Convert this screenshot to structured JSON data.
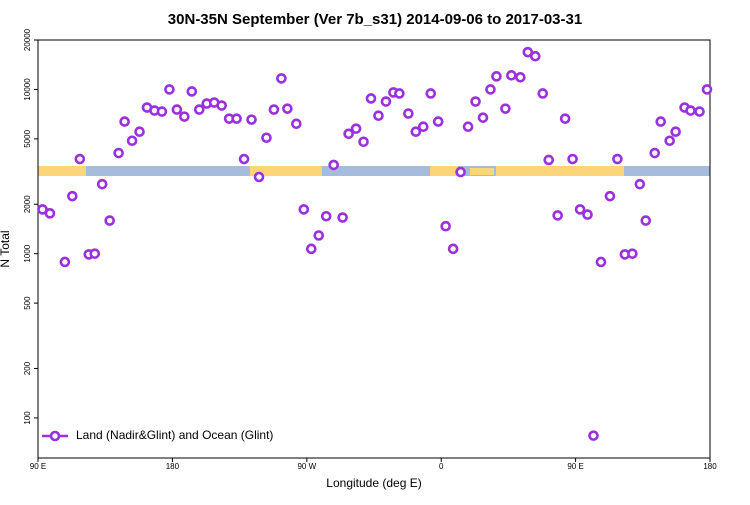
{
  "chart_data": {
    "type": "scatter",
    "title": "30N-35N September (Ver 7b_s31)   2014-09-06 to 2017-03-31",
    "xlabel": "Longitude (deg E)",
    "ylabel": "N Total",
    "log_y": true,
    "legend": "lower left",
    "xlim": [
      90,
      540
    ],
    "ylim": [
      57,
      20000
    ],
    "xticks": [
      {
        "value": 90,
        "label": "90 E"
      },
      180,
      {
        "value": 270,
        "label": "90 W"
      },
      {
        "value": 360,
        "label": "0"
      },
      {
        "value": 450,
        "label": "90 E"
      },
      {
        "value": 540,
        "label": "180"
      }
    ],
    "yticks": [
      100,
      200,
      500,
      1000,
      2000,
      5000,
      10000,
      20000
    ],
    "series": [
      {
        "name": "Land (Nadir&Glint) and Ocean (Glint)",
        "color": "#9b30e0",
        "x": [
          93,
          98,
          108,
          113,
          118,
          124,
          128,
          133,
          138,
          144,
          148,
          153,
          158,
          163,
          168,
          173,
          178,
          183,
          188,
          193,
          198,
          203,
          208,
          213,
          218,
          223,
          228,
          233,
          238,
          243,
          248,
          253,
          257,
          263,
          268,
          273,
          278,
          283,
          288,
          294,
          298,
          303,
          308,
          313,
          318,
          323,
          328,
          332,
          338,
          343,
          348,
          353,
          358,
          363,
          368,
          373,
          378,
          383,
          388,
          393,
          397,
          403,
          407,
          413,
          418,
          423,
          428,
          432,
          438,
          443,
          448,
          453,
          458,
          462,
          467,
          473,
          478,
          483,
          488,
          493,
          497,
          503,
          507,
          513,
          517,
          523,
          527,
          533,
          538
        ],
        "values": [
          1860,
          1760,
          890,
          2240,
          3770,
          990,
          1000,
          2650,
          1590,
          4100,
          6370,
          4870,
          5530,
          7760,
          7440,
          7330,
          10000,
          7540,
          6830,
          9720,
          7540,
          8200,
          8320,
          7980,
          6640,
          6640,
          3770,
          6550,
          2930,
          5080,
          7540,
          11670,
          7640,
          6180,
          1860,
          1070,
          1290,
          1690,
          3470,
          1660,
          5370,
          5770,
          4800,
          8810,
          6920,
          8440,
          9590,
          9450,
          7130,
          5530,
          5930,
          9450,
          6370,
          1470,
          1070,
          3140,
          5930,
          8440,
          6730,
          10000,
          12020,
          7640,
          12190,
          11860,
          16870,
          15930,
          9450,
          3720,
          1710,
          6640,
          3770,
          1860,
          1730,
          78,
          890,
          2240,
          3770,
          990,
          1000,
          2650,
          1590,
          4100,
          6370,
          4870,
          5530,
          7760,
          7440,
          7330,
          10000
        ]
      }
    ]
  }
}
